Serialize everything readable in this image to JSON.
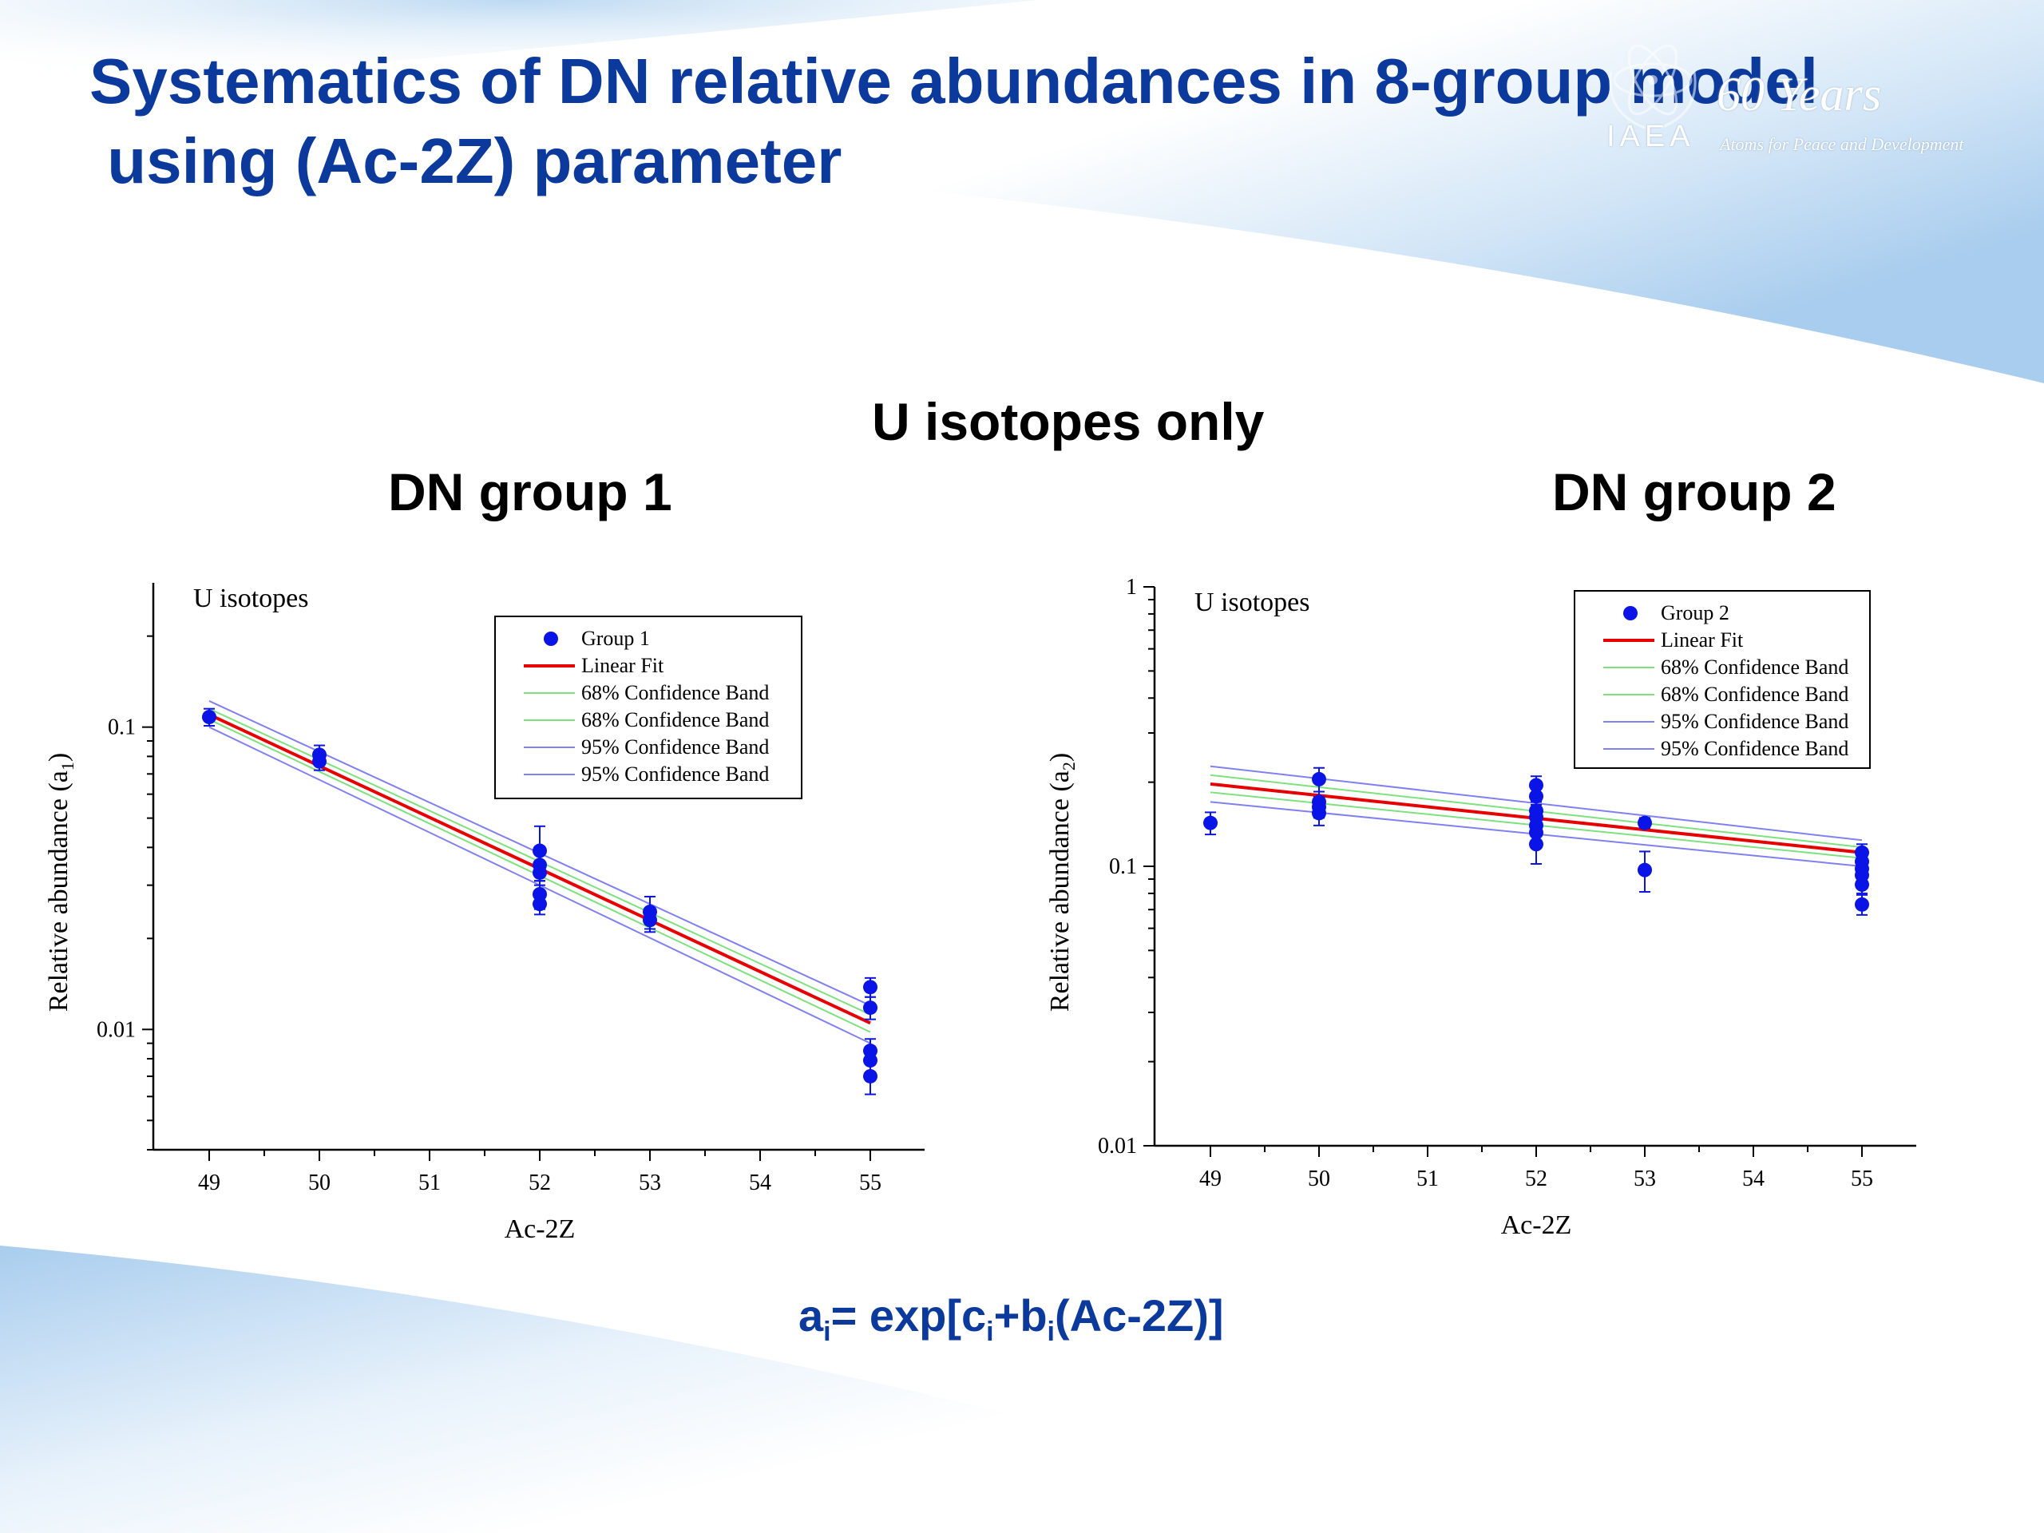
{
  "slide": {
    "title_line1": "Systematics of DN relative abundances in 8-group model",
    "title_line2": " using (Ac-2Z) parameter",
    "logo": {
      "years": "60 Years",
      "org": "IAEA",
      "tagline": "Atoms for Peace and Development"
    },
    "subtitle_main": "U isotopes only",
    "subtitle_left": "DN group 1",
    "subtitle_right": "DN group 2",
    "formula": {
      "a": "a",
      "sub_i": "i",
      "mid1": "= exp[c",
      "mid2": "+b",
      "end": "(Ac-2Z)]"
    },
    "colors": {
      "title": "#0b3a9c",
      "points": "#0a14e6",
      "fit": "#e60000",
      "band68": "#7ee07e",
      "band95": "#8080f0"
    }
  },
  "chart_data": [
    {
      "type": "scatter",
      "annotation": "U isotopes",
      "xlabel": "Ac-2Z",
      "ylabel_main": "Relative abundance (a",
      "ylabel_sub": "1",
      "ylabel_end": ")",
      "xlim": [
        48.5,
        55.5
      ],
      "ylim": [
        0.004,
        0.3
      ],
      "yscale": "log",
      "xticks": [
        "49",
        "50",
        "51",
        "52",
        "53",
        "54",
        "55"
      ],
      "yticks": [
        {
          "v": 0.1,
          "label": "0.1"
        },
        {
          "v": 0.01,
          "label": "0.01"
        }
      ],
      "legend_position": "top-right",
      "legend": [
        "Group 1",
        "Linear Fit",
        "68% Confidence Band",
        "68% Confidence Band",
        "95% Confidence Band",
        "95% Confidence Band"
      ],
      "series": [
        {
          "name": "Group 1",
          "points": [
            {
              "x": 49,
              "y": 0.108,
              "err": 0.007
            },
            {
              "x": 50,
              "y": 0.081,
              "err": 0.006
            },
            {
              "x": 50,
              "y": 0.077,
              "err": 0.005
            },
            {
              "x": 52,
              "y": 0.039,
              "err": 0.008
            },
            {
              "x": 52,
              "y": 0.035,
              "err": 0.004
            },
            {
              "x": 52,
              "y": 0.033,
              "err": 0.003
            },
            {
              "x": 52,
              "y": 0.028,
              "err": 0.003
            },
            {
              "x": 52,
              "y": 0.026,
              "err": 0.002
            },
            {
              "x": 53,
              "y": 0.0245,
              "err": 0.003
            },
            {
              "x": 53,
              "y": 0.023,
              "err": 0.002
            },
            {
              "x": 55,
              "y": 0.0138,
              "err": 0.001
            },
            {
              "x": 55,
              "y": 0.0118,
              "err": 0.001
            },
            {
              "x": 55,
              "y": 0.0085,
              "err": 0.0008
            },
            {
              "x": 55,
              "y": 0.0079,
              "err": 0.0007
            },
            {
              "x": 55,
              "y": 0.007,
              "err": 0.0009
            }
          ]
        }
      ],
      "fit": {
        "x": [
          49,
          55
        ],
        "y": [
          0.11,
          0.0105
        ]
      },
      "band68": {
        "upper": [
          0.115,
          0.0112
        ],
        "lower": [
          0.106,
          0.0098
        ]
      },
      "band95": {
        "upper": [
          0.122,
          0.012
        ],
        "lower": [
          0.1,
          0.009
        ]
      }
    },
    {
      "type": "scatter",
      "annotation": "U isotopes",
      "xlabel": "Ac-2Z",
      "ylabel_main": "Relative abundance (a",
      "ylabel_sub": "2",
      "ylabel_end": ")",
      "xlim": [
        48.5,
        55.5
      ],
      "ylim": [
        0.01,
        1
      ],
      "yscale": "log",
      "xticks": [
        "49",
        "50",
        "51",
        "52",
        "53",
        "54",
        "55"
      ],
      "yticks": [
        {
          "v": 1,
          "label": "1"
        },
        {
          "v": 0.1,
          "label": "0.1"
        },
        {
          "v": 0.01,
          "label": "0.01"
        }
      ],
      "legend_position": "top-right",
      "legend": [
        "Group 2",
        "Linear Fit",
        "68% Confidence Band",
        "68% Confidence Band",
        "95% Confidence Band",
        "95% Confidence Band"
      ],
      "series": [
        {
          "name": "Group 2",
          "points": [
            {
              "x": 49,
              "y": 0.143,
              "err": 0.013
            },
            {
              "x": 50,
              "y": 0.205,
              "err": 0.02
            },
            {
              "x": 50,
              "y": 0.17,
              "err": 0.015
            },
            {
              "x": 50,
              "y": 0.163,
              "err": 0.014
            },
            {
              "x": 50,
              "y": 0.155,
              "err": 0.015
            },
            {
              "x": 52,
              "y": 0.195,
              "err": 0.015
            },
            {
              "x": 52,
              "y": 0.178,
              "err": 0.012
            },
            {
              "x": 52,
              "y": 0.158,
              "err": 0.012
            },
            {
              "x": 52,
              "y": 0.15,
              "err": 0.01
            },
            {
              "x": 52,
              "y": 0.14,
              "err": 0.01
            },
            {
              "x": 52,
              "y": 0.132,
              "err": 0.01
            },
            {
              "x": 52,
              "y": 0.12,
              "err": 0.018
            },
            {
              "x": 53,
              "y": 0.143,
              "err": 0.006
            },
            {
              "x": 53,
              "y": 0.097,
              "err": 0.016
            },
            {
              "x": 55,
              "y": 0.112,
              "err": 0.008
            },
            {
              "x": 55,
              "y": 0.104,
              "err": 0.006
            },
            {
              "x": 55,
              "y": 0.098,
              "err": 0.006
            },
            {
              "x": 55,
              "y": 0.093,
              "err": 0.006
            },
            {
              "x": 55,
              "y": 0.086,
              "err": 0.006
            },
            {
              "x": 55,
              "y": 0.073,
              "err": 0.006
            }
          ]
        }
      ],
      "fit": {
        "x": [
          49,
          55
        ],
        "y": [
          0.197,
          0.112
        ]
      },
      "band68": {
        "upper": [
          0.212,
          0.117
        ],
        "lower": [
          0.184,
          0.107
        ]
      },
      "band95": {
        "upper": [
          0.228,
          0.124
        ],
        "lower": [
          0.17,
          0.1
        ]
      }
    }
  ]
}
